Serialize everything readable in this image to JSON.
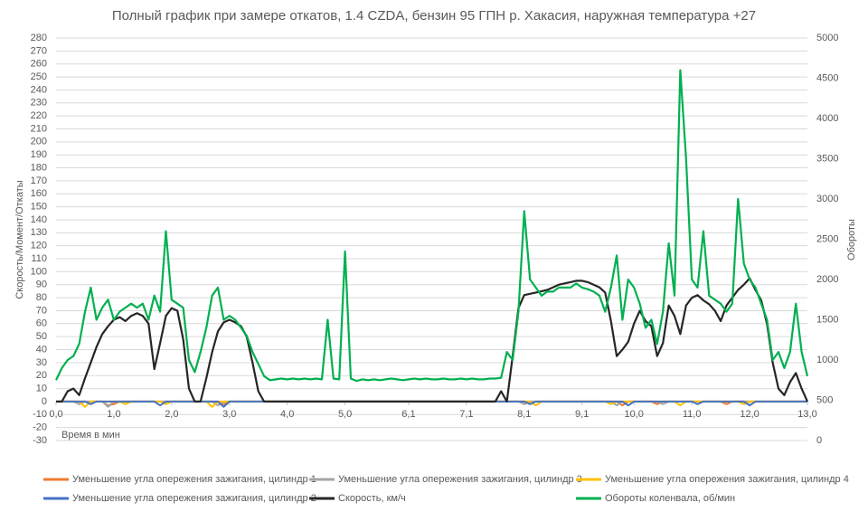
{
  "chart_data": {
    "type": "line",
    "title": "Полный график при замере откатов, 1.4 CZDA, бензин 95 ГПН р. Хакасия, наружная температура +27",
    "xlabel": "Время в мин",
    "ylabel": "Скорость/Момент/Откаты",
    "y2label": "Обороты",
    "grid": true,
    "legend": "bottom",
    "xlim": [
      0,
      13
    ],
    "xticks": [
      {
        "value": 0,
        "label": "0,0"
      },
      {
        "value": 1,
        "label": "1,0"
      },
      {
        "value": 2,
        "label": "2,0"
      },
      {
        "value": 3,
        "label": "3,0"
      },
      {
        "value": 4,
        "label": "4,0"
      },
      {
        "value": 5,
        "label": "5,0"
      },
      {
        "value": 6.1,
        "label": "6,1"
      },
      {
        "value": 7.1,
        "label": "7,1"
      },
      {
        "value": 8.1,
        "label": "8,1"
      },
      {
        "value": 9.1,
        "label": "9,1"
      },
      {
        "value": 10,
        "label": "10,0"
      },
      {
        "value": 11,
        "label": "11,0"
      },
      {
        "value": 12,
        "label": "12,0"
      },
      {
        "value": 13,
        "label": "13,0"
      }
    ],
    "ylim": [
      -30,
      280
    ],
    "yticks": [
      -30,
      -20,
      -10,
      0,
      10,
      20,
      30,
      40,
      50,
      60,
      70,
      80,
      90,
      100,
      110,
      120,
      130,
      140,
      150,
      160,
      170,
      180,
      190,
      200,
      210,
      220,
      230,
      240,
      250,
      260,
      270,
      280
    ],
    "y2lim": [
      0,
      5000
    ],
    "y2ticks": [
      0,
      500,
      1000,
      1500,
      2000,
      2500,
      3000,
      3500,
      4000,
      4500,
      5000
    ],
    "x": [
      0,
      0.1,
      0.2,
      0.3,
      0.4,
      0.5,
      0.6,
      0.7,
      0.8,
      0.9,
      1,
      1.1,
      1.2,
      1.3,
      1.4,
      1.5,
      1.6,
      1.7,
      1.8,
      1.9,
      2,
      2.1,
      2.2,
      2.3,
      2.4,
      2.5,
      2.6,
      2.7,
      2.8,
      2.9,
      3,
      3.1,
      3.2,
      3.3,
      3.4,
      3.5,
      3.6,
      3.7,
      3.8,
      3.9,
      4,
      4.1,
      4.2,
      4.3,
      4.4,
      4.5,
      4.6,
      4.7,
      4.8,
      4.9,
      5,
      5.1,
      5.2,
      5.3,
      5.4,
      5.5,
      5.6,
      5.7,
      5.8,
      5.9,
      6,
      6.1,
      6.2,
      6.3,
      6.4,
      6.5,
      6.6,
      6.7,
      6.8,
      6.9,
      7,
      7.1,
      7.2,
      7.3,
      7.4,
      7.5,
      7.6,
      7.7,
      7.8,
      7.9,
      8,
      8.1,
      8.2,
      8.3,
      8.4,
      8.5,
      8.6,
      8.7,
      8.8,
      8.9,
      9,
      9.1,
      9.2,
      9.3,
      9.4,
      9.5,
      9.6,
      9.7,
      9.8,
      9.9,
      10,
      10.1,
      10.2,
      10.3,
      10.4,
      10.5,
      10.6,
      10.7,
      10.8,
      10.9,
      11,
      11.1,
      11.2,
      11.3,
      11.4,
      11.5,
      11.6,
      11.7,
      11.8,
      11.9,
      12,
      12.1,
      12.2,
      12.3,
      12.4,
      12.5,
      12.6,
      12.7,
      12.8,
      12.9,
      13
    ],
    "series": [
      {
        "name": "Уменьшение угла опережения зажигания, цилиндр 1",
        "color": "#ed7d31",
        "values": [
          0,
          0,
          0,
          0,
          0,
          0,
          0,
          0,
          0,
          -3,
          -2,
          0,
          0,
          0,
          0,
          0,
          0,
          0,
          0,
          0,
          0,
          0,
          0,
          0,
          0,
          0,
          0,
          0,
          0,
          -2,
          0,
          0,
          0,
          0,
          0,
          0,
          0,
          0,
          0,
          0,
          0,
          0,
          0,
          0,
          0,
          0,
          0,
          0,
          0,
          0,
          0,
          0,
          0,
          0,
          0,
          0,
          0,
          0,
          0,
          0,
          0,
          0,
          0,
          0,
          0,
          0,
          0,
          0,
          0,
          0,
          0,
          0,
          0,
          0,
          0,
          0,
          0,
          0,
          0,
          0,
          0,
          0,
          0,
          0,
          0,
          0,
          0,
          0,
          0,
          0,
          0,
          0,
          0,
          0,
          0,
          0,
          0,
          0,
          -3,
          0,
          0,
          0,
          0,
          0,
          -2,
          0,
          0,
          0,
          0,
          0,
          0,
          0,
          0,
          0,
          0,
          0,
          -2,
          0,
          0,
          0,
          0,
          0,
          0,
          0,
          0,
          0,
          0,
          0,
          0,
          0,
          0
        ]
      },
      {
        "name": "Уменьшение угла опережения зажигания, цилиндр 3",
        "color": "#a5a5a5",
        "values": [
          0,
          0,
          0,
          0,
          -2,
          0,
          0,
          0,
          0,
          -4,
          0,
          0,
          0,
          0,
          0,
          0,
          0,
          0,
          0,
          0,
          0,
          0,
          0,
          0,
          0,
          0,
          0,
          0,
          -3,
          0,
          0,
          0,
          0,
          0,
          0,
          0,
          0,
          0,
          0,
          0,
          0,
          0,
          0,
          0,
          0,
          0,
          0,
          0,
          0,
          0,
          0,
          0,
          0,
          0,
          0,
          0,
          0,
          0,
          0,
          0,
          0,
          0,
          0,
          0,
          0,
          0,
          0,
          0,
          0,
          0,
          0,
          0,
          0,
          0,
          0,
          0,
          0,
          0,
          0,
          0,
          0,
          -2,
          0,
          0,
          0,
          0,
          0,
          0,
          0,
          0,
          0,
          0,
          0,
          0,
          0,
          0,
          0,
          -3,
          0,
          0,
          0,
          0,
          0,
          0,
          0,
          -2,
          0,
          0,
          0,
          0,
          0,
          0,
          0,
          0,
          0,
          0,
          0,
          0,
          0,
          0,
          0,
          0,
          0,
          0,
          0,
          0,
          0,
          0,
          0,
          0,
          0
        ]
      },
      {
        "name": "Уменьшение угла опережения зажигания, цилиндр 4",
        "color": "#ffc000",
        "values": [
          0,
          0,
          0,
          0,
          0,
          -4,
          0,
          0,
          0,
          0,
          0,
          0,
          -2,
          0,
          0,
          0,
          0,
          0,
          0,
          -2,
          0,
          0,
          0,
          0,
          0,
          0,
          0,
          -4,
          0,
          0,
          0,
          0,
          0,
          0,
          0,
          0,
          0,
          0,
          0,
          0,
          0,
          0,
          0,
          0,
          0,
          0,
          0,
          0,
          0,
          0,
          0,
          0,
          0,
          0,
          0,
          0,
          0,
          0,
          0,
          0,
          0,
          0,
          0,
          0,
          0,
          0,
          0,
          0,
          0,
          0,
          0,
          0,
          0,
          0,
          0,
          0,
          0,
          0,
          0,
          0,
          0,
          0,
          0,
          -3,
          0,
          0,
          0,
          0,
          0,
          0,
          0,
          0,
          0,
          0,
          0,
          0,
          -2,
          0,
          0,
          0,
          0,
          0,
          0,
          0,
          0,
          0,
          0,
          0,
          -3,
          0,
          0,
          0,
          0,
          0,
          0,
          0,
          0,
          0,
          0,
          -2,
          0,
          0,
          0,
          0,
          0,
          0,
          0,
          0,
          0,
          0,
          0
        ]
      },
      {
        "name": "Уменьшение угла опережения зажигания, цилиндр 2",
        "color": "#4472c4",
        "values": [
          0,
          0,
          0,
          0,
          0,
          0,
          -2,
          0,
          0,
          0,
          0,
          0,
          0,
          0,
          0,
          0,
          0,
          0,
          -3,
          0,
          0,
          0,
          0,
          0,
          0,
          0,
          0,
          0,
          0,
          -4,
          0,
          0,
          0,
          0,
          0,
          0,
          0,
          0,
          0,
          0,
          0,
          0,
          0,
          0,
          0,
          0,
          0,
          0,
          0,
          0,
          0,
          0,
          0,
          0,
          0,
          0,
          0,
          0,
          0,
          0,
          0,
          0,
          0,
          0,
          0,
          0,
          0,
          0,
          0,
          0,
          0,
          0,
          0,
          0,
          0,
          0,
          0,
          0,
          0,
          0,
          0,
          0,
          -2,
          0,
          0,
          0,
          0,
          0,
          0,
          0,
          0,
          0,
          0,
          0,
          0,
          0,
          0,
          0,
          0,
          -3,
          0,
          0,
          0,
          0,
          0,
          0,
          0,
          0,
          0,
          0,
          0,
          -2,
          0,
          0,
          0,
          0,
          0,
          0,
          0,
          0,
          -3,
          0,
          0,
          0,
          0,
          0,
          0,
          0,
          0,
          0,
          0
        ]
      },
      {
        "name": "Скорость, км/ч",
        "color": "#262626",
        "values": [
          0,
          0,
          8,
          10,
          5,
          18,
          30,
          42,
          52,
          58,
          63,
          65,
          62,
          66,
          68,
          66,
          60,
          25,
          45,
          66,
          72,
          70,
          48,
          10,
          0,
          0,
          18,
          38,
          54,
          61,
          63,
          61,
          58,
          50,
          30,
          8,
          0,
          0,
          0,
          0,
          0,
          0,
          0,
          0,
          0,
          0,
          0,
          0,
          0,
          0,
          0,
          0,
          0,
          0,
          0,
          0,
          0,
          0,
          0,
          0,
          0,
          0,
          0,
          0,
          0,
          0,
          0,
          0,
          0,
          0,
          0,
          0,
          0,
          0,
          0,
          0,
          0,
          8,
          0,
          35,
          72,
          82,
          83,
          84,
          85,
          86,
          88,
          90,
          91,
          92,
          93,
          93,
          92,
          90,
          88,
          84,
          62,
          35,
          40,
          46,
          60,
          70,
          62,
          58,
          35,
          45,
          74,
          66,
          52,
          74,
          80,
          82,
          78,
          75,
          70,
          62,
          74,
          80,
          86,
          90,
          95,
          86,
          78,
          60,
          30,
          10,
          5,
          15,
          22,
          10,
          0
        ]
      },
      {
        "name": "Обороты коленвала, об/мин",
        "color": "#00b050",
        "axis": "y2",
        "values": [
          750,
          900,
          1000,
          1050,
          1200,
          1600,
          1900,
          1500,
          1650,
          1750,
          1500,
          1600,
          1650,
          1700,
          1650,
          1700,
          1500,
          1800,
          1600,
          2600,
          1750,
          1700,
          1650,
          1000,
          850,
          1100,
          1400,
          1800,
          1900,
          1500,
          1550,
          1500,
          1400,
          1300,
          1100,
          950,
          800,
          750,
          760,
          770,
          760,
          770,
          760,
          770,
          760,
          770,
          760,
          1500,
          770,
          760,
          2350,
          770,
          740,
          760,
          750,
          760,
          750,
          760,
          770,
          760,
          750,
          760,
          770,
          760,
          770,
          760,
          760,
          770,
          760,
          760,
          770,
          760,
          770,
          760,
          760,
          770,
          770,
          780,
          1100,
          1000,
          1600,
          2850,
          2000,
          1900,
          1800,
          1850,
          1850,
          1900,
          1900,
          1900,
          1950,
          1900,
          1880,
          1850,
          1800,
          1600,
          1900,
          2300,
          1500,
          2000,
          1900,
          1700,
          1400,
          1500,
          1200,
          1600,
          2450,
          1800,
          4600,
          3500,
          2000,
          1900,
          2600,
          1800,
          1750,
          1700,
          1600,
          1700,
          3000,
          2200,
          2000,
          1900,
          1700,
          1500,
          1000,
          1100,
          900,
          1100,
          1700,
          1100,
          800
        ]
      }
    ]
  }
}
